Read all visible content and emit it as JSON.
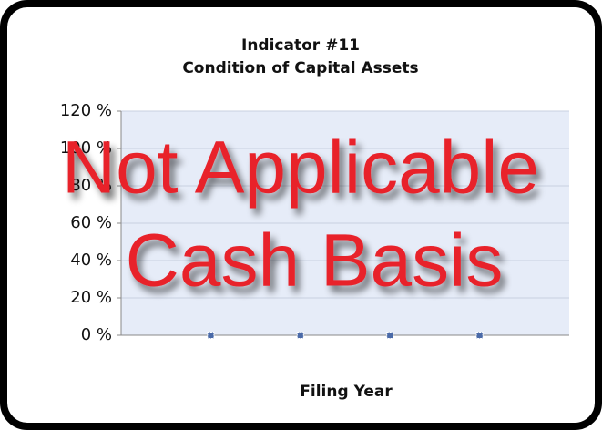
{
  "chart_data": {
    "type": "point",
    "title": [
      "Indicator #11",
      "Condition of Capital Assets"
    ],
    "x_label": "Filing Year",
    "categories": [
      null,
      null,
      null,
      null
    ],
    "values": [
      0,
      0,
      0,
      0
    ],
    "color": "#4a6aa8",
    "ylim": [
      0,
      120
    ],
    "yticks": [
      {
        "value": 0,
        "label": "0 %"
      },
      {
        "value": 20,
        "label": "20 %"
      },
      {
        "value": 40,
        "label": "40 %"
      },
      {
        "value": 60,
        "label": "60 %"
      },
      {
        "value": 80,
        "label": "80 %"
      },
      {
        "value": 100,
        "label": "100 %"
      },
      {
        "value": 120,
        "label": "120 %"
      }
    ],
    "grid": true,
    "annotations": [
      "Not Applicable",
      "Cash Basis"
    ]
  }
}
